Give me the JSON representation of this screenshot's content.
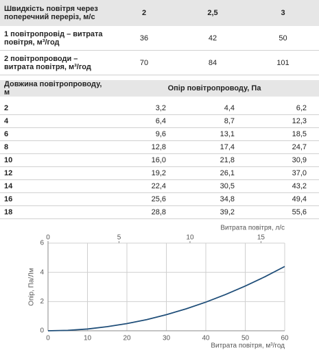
{
  "table1": {
    "header": [
      "Швидкість повітря через поперечний переріз, м/с",
      "2",
      "2,5",
      "3"
    ],
    "rows": [
      [
        "1 повітропровід – витрата повітря, м³/год",
        36,
        42,
        50
      ],
      [
        "2 повітропроводи – витрата повітря, м³/год",
        70,
        84,
        101
      ]
    ]
  },
  "table2": {
    "header": [
      "Довжина повітропроводу, м",
      "Опір повітропроводу, Па"
    ],
    "rows": [
      [
        2,
        "3,2",
        "4,4",
        "6,2"
      ],
      [
        4,
        "6,4",
        "8,7",
        "12,3"
      ],
      [
        6,
        "9,6",
        "13,1",
        "18,5"
      ],
      [
        8,
        "12,8",
        "17,4",
        "24,7"
      ],
      [
        10,
        "16,0",
        "21,8",
        "30,9"
      ],
      [
        12,
        "19,2",
        "26,1",
        "37,0"
      ],
      [
        14,
        "22,4",
        "30,5",
        "43,2"
      ],
      [
        16,
        "25,6",
        "34,8",
        "49,4"
      ],
      [
        18,
        "28,8",
        "39,2",
        "55,6"
      ]
    ]
  },
  "chart_data": {
    "type": "line",
    "x_label": "Витрата повітря, м³/год",
    "x2_label": "Витрата повітря, л/с",
    "y_label": "Опір, Па/Лм",
    "x": [
      0,
      5,
      10,
      15,
      20,
      25,
      30,
      35,
      40,
      45,
      50,
      55,
      60
    ],
    "series": [
      {
        "name": "Опір",
        "color": "#1f4e79",
        "values": [
          0,
          0.03,
          0.12,
          0.28,
          0.49,
          0.76,
          1.1,
          1.5,
          1.96,
          2.48,
          3.06,
          3.7,
          4.4
        ]
      }
    ],
    "xlim": [
      0,
      60
    ],
    "xticks": [
      0,
      10,
      20,
      30,
      40,
      50,
      60
    ],
    "x2lim": [
      0,
      16.67
    ],
    "x2ticks": [
      0,
      5,
      10,
      15
    ],
    "ylim": [
      0,
      6
    ],
    "yticks": [
      0,
      2,
      4,
      6
    ],
    "grid": true
  }
}
